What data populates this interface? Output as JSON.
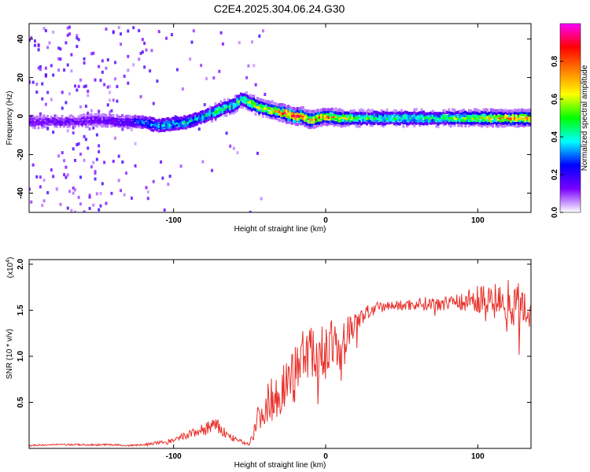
{
  "title": "C2E4.2025.304.06.24.G30",
  "chart_data": [
    {
      "type": "heatmap",
      "title": "C2E4.2025.304.06.24.G30",
      "xlabel": "Height of straight line (km)",
      "ylabel": "Frequency (Hz)",
      "xlim": [
        -195,
        135
      ],
      "ylim": [
        -50,
        48
      ],
      "x_ticks": [
        -100,
        0,
        100
      ],
      "x_tick_labels": [
        "-100",
        "0",
        "100"
      ],
      "y_ticks": [
        -40,
        -20,
        0,
        20,
        40
      ],
      "y_tick_labels": [
        "-40",
        "-20",
        "0",
        "20",
        "40"
      ],
      "grid": false,
      "colorbar": {
        "label": "Normalized spectral amplitude",
        "range": [
          0,
          1
        ],
        "ticks": [
          0.0,
          0.2,
          0.4,
          0.6,
          0.8
        ],
        "tick_labels": [
          "0.0",
          "0.2",
          "0.4",
          "0.6",
          "0.8"
        ],
        "colors": [
          "#ffffff",
          "#7b00ff",
          "#0000ff",
          "#00ffff",
          "#00ff00",
          "#ffff00",
          "#ff8000",
          "#ff0000",
          "#ff00ff"
        ]
      },
      "ridge": {
        "x": [
          -195,
          -170,
          -150,
          -130,
          -120,
          -110,
          -100,
          -90,
          -80,
          -70,
          -60,
          -55,
          -50,
          -45,
          -40,
          -35,
          -30,
          -25,
          -20,
          -15,
          -10,
          -5,
          0,
          10,
          20,
          40,
          60,
          80,
          100,
          120,
          135
        ],
        "frequency": [
          -3,
          -3,
          -2,
          -3,
          -3,
          -5,
          -4,
          -3,
          0,
          3,
          6,
          9,
          7,
          5,
          4,
          3,
          2,
          1,
          0,
          0,
          -2,
          -1,
          0,
          -1,
          -1,
          -1,
          -1,
          -1,
          -1,
          -1,
          -1
        ],
        "amplitude": [
          0.15,
          0.15,
          0.15,
          0.2,
          0.3,
          0.35,
          0.4,
          0.4,
          0.4,
          0.45,
          0.5,
          0.5,
          0.55,
          0.6,
          0.6,
          0.7,
          0.75,
          0.85,
          0.9,
          0.8,
          0.7,
          0.75,
          0.8,
          0.6,
          0.5,
          0.45,
          0.45,
          0.5,
          0.6,
          0.7,
          0.7
        ]
      }
    },
    {
      "type": "line",
      "xlabel": "Height of straight line (km)",
      "ylabel": "SNR (10 * v/v)",
      "y_multiplier_label": "(x10",
      "y_multiplier_exponent": "4",
      "y_multiplier_suffix": ")",
      "xlim": [
        -195,
        135
      ],
      "ylim": [
        0,
        2.05
      ],
      "x_ticks": [
        -100,
        0,
        100
      ],
      "x_tick_labels": [
        "-100",
        "0",
        "100"
      ],
      "y_ticks": [
        0.5,
        1.0,
        1.5,
        2.0
      ],
      "y_tick_labels": [
        "0.5",
        "1.0",
        "1.5",
        "2.0"
      ],
      "grid": false,
      "color": "#e8302a",
      "series": [
        {
          "x": [
            -195,
            -180,
            -160,
            -140,
            -130,
            -120,
            -110,
            -100,
            -95,
            -90,
            -85,
            -80,
            -75,
            -70,
            -65,
            -60,
            -55,
            -50,
            -45,
            -40,
            -35,
            -30,
            -25,
            -20,
            -15,
            -10,
            -5,
            0,
            5,
            10,
            15,
            20,
            25,
            30,
            40,
            50,
            60,
            70,
            80,
            90,
            100,
            110,
            120,
            130,
            135
          ],
          "values": [
            0.03,
            0.04,
            0.04,
            0.04,
            0.03,
            0.04,
            0.06,
            0.08,
            0.12,
            0.15,
            0.18,
            0.2,
            0.25,
            0.22,
            0.15,
            0.1,
            0.07,
            0.05,
            0.3,
            0.45,
            0.55,
            0.6,
            0.75,
            0.9,
            1.0,
            1.05,
            1.0,
            1.05,
            1.15,
            1.0,
            1.3,
            1.35,
            1.45,
            1.5,
            1.55,
            1.55,
            1.57,
            1.57,
            1.6,
            1.6,
            1.62,
            1.62,
            1.6,
            1.55,
            1.5
          ],
          "noise": [
            0.01,
            0.01,
            0.01,
            0.01,
            0.01,
            0.01,
            0.02,
            0.03,
            0.04,
            0.05,
            0.06,
            0.07,
            0.1,
            0.08,
            0.05,
            0.03,
            0.02,
            0.02,
            0.15,
            0.2,
            0.25,
            0.25,
            0.25,
            0.25,
            0.3,
            0.3,
            0.3,
            0.3,
            0.25,
            0.3,
            0.2,
            0.15,
            0.1,
            0.08,
            0.05,
            0.06,
            0.07,
            0.08,
            0.1,
            0.12,
            0.15,
            0.18,
            0.25,
            0.25,
            0.25
          ]
        }
      ]
    }
  ]
}
